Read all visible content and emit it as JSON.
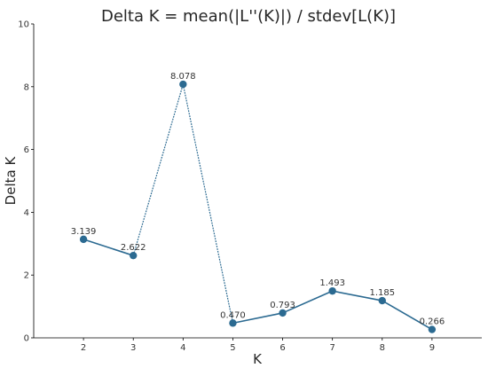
{
  "chart_data": {
    "type": "line",
    "title": "Delta K = mean(|L''(K)|) / stdev[L(K)]",
    "xlabel": "K",
    "ylabel": "Delta K",
    "x": [
      2,
      3,
      4,
      5,
      6,
      7,
      8,
      9
    ],
    "x_ticks": [
      "2",
      "3",
      "4",
      "5",
      "6",
      "7",
      "8",
      "9"
    ],
    "xlim": [
      1,
      10
    ],
    "y_ticks": [
      "0",
      "2",
      "4",
      "6",
      "8",
      "10"
    ],
    "ylim": [
      0,
      10
    ],
    "grid": false,
    "legend": "none",
    "series": [
      {
        "values": [
          3.139,
          2.622,
          8.078,
          0.47,
          0.793,
          1.493,
          1.185,
          0.266
        ],
        "labels": [
          "3.139",
          "2.622",
          "8.078",
          "0.470",
          "0.793",
          "1.493",
          "1.185",
          "0.266"
        ],
        "color": "#2b6a91"
      }
    ]
  }
}
